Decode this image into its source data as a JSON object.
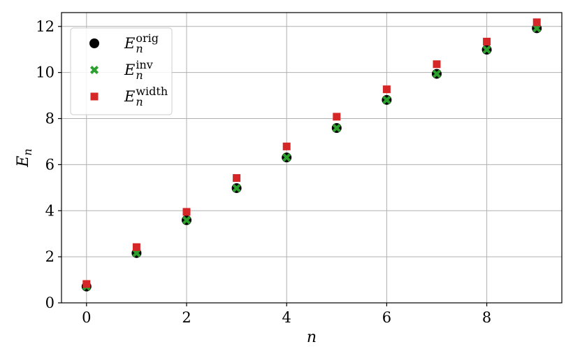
{
  "chart_data": {
    "type": "scatter",
    "xlabel": "n",
    "ylabel_base": "E",
    "ylabel_sub": "n",
    "xlim": [
      -0.5,
      9.5
    ],
    "ylim": [
      0,
      12.6
    ],
    "xticks": [
      0,
      2,
      4,
      6,
      8
    ],
    "yticks": [
      0,
      2,
      4,
      6,
      8,
      10,
      12
    ],
    "grid": true,
    "legend_position": "top-left",
    "x": [
      0,
      1,
      2,
      3,
      4,
      5,
      6,
      7,
      8,
      9
    ],
    "series": [
      {
        "label_base": "E",
        "label_sub": "n",
        "label_sup": "orig",
        "marker": "circle",
        "color": "#000000",
        "values": [
          0.71,
          2.16,
          3.59,
          4.98,
          6.31,
          7.59,
          8.81,
          9.94,
          10.99,
          11.92
        ]
      },
      {
        "label_base": "E",
        "label_sub": "n",
        "label_sup": "inv",
        "marker": "x",
        "color": "#2ca02c",
        "values": [
          0.71,
          2.16,
          3.59,
          4.98,
          6.31,
          7.59,
          8.81,
          9.94,
          10.99,
          11.92
        ]
      },
      {
        "label_base": "E",
        "label_sub": "n",
        "label_sup": "width",
        "marker": "square",
        "color": "#d62728",
        "values": [
          0.82,
          2.42,
          3.95,
          5.42,
          6.79,
          8.08,
          9.27,
          10.36,
          11.34,
          12.18
        ]
      }
    ]
  }
}
